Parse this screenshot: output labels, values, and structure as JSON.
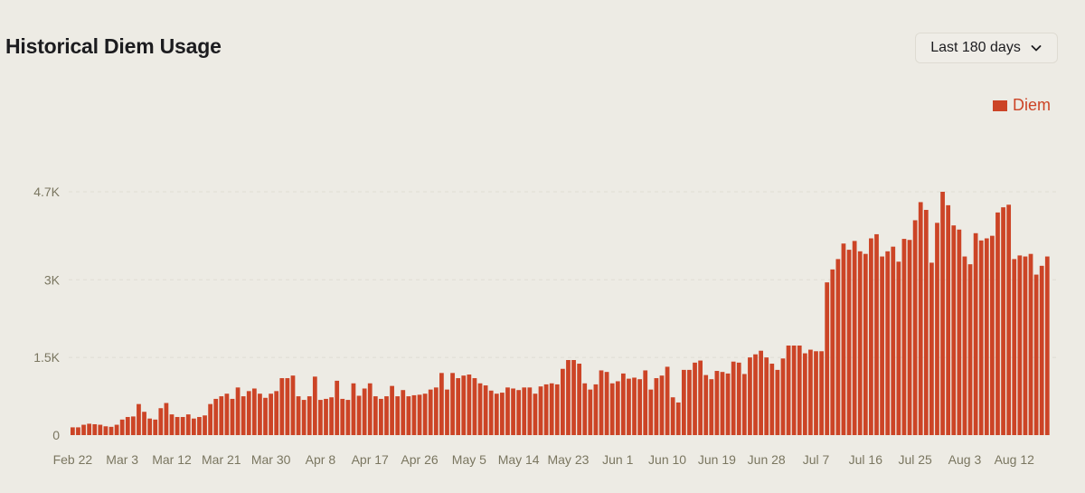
{
  "header": {
    "title": "Historical Diem Usage"
  },
  "range_select": {
    "label": "Last 180 days",
    "icon": "chevron-down-icon"
  },
  "colors": {
    "bar": "#cc4426",
    "background": "#edebe4",
    "tick_text": "#7a7660",
    "gridline": "#e0ddd3"
  },
  "chart_data": {
    "type": "bar",
    "title": "Historical Diem Usage",
    "xlabel": "",
    "ylabel": "",
    "ylim": [
      0,
      4700
    ],
    "y_ticks": [
      0,
      1500,
      3000,
      4700
    ],
    "y_tick_labels": [
      "0",
      "1.5K",
      "3K",
      "4.7K"
    ],
    "grid": true,
    "legend": "top-right",
    "start_date": "Feb 22",
    "x_tick_labels": [
      {
        "label": "Feb 22",
        "index": 0
      },
      {
        "label": "Mar 3",
        "index": 9
      },
      {
        "label": "Mar 12",
        "index": 18
      },
      {
        "label": "Mar 21",
        "index": 27
      },
      {
        "label": "Mar 30",
        "index": 36
      },
      {
        "label": "Apr 8",
        "index": 45
      },
      {
        "label": "Apr 17",
        "index": 54
      },
      {
        "label": "Apr 26",
        "index": 63
      },
      {
        "label": "May 5",
        "index": 72
      },
      {
        "label": "May 14",
        "index": 81
      },
      {
        "label": "May 23",
        "index": 90
      },
      {
        "label": "Jun 1",
        "index": 99
      },
      {
        "label": "Jun 10",
        "index": 108
      },
      {
        "label": "Jun 19",
        "index": 117
      },
      {
        "label": "Jun 28",
        "index": 126
      },
      {
        "label": "Jul 7",
        "index": 135
      },
      {
        "label": "Jul 16",
        "index": 144
      },
      {
        "label": "Jul 25",
        "index": 153
      },
      {
        "label": "Aug 3",
        "index": 162
      },
      {
        "label": "Aug 12",
        "index": 171
      }
    ],
    "series": [
      {
        "name": "Diem",
        "values": [
          150,
          150,
          200,
          220,
          210,
          200,
          170,
          160,
          200,
          300,
          350,
          360,
          600,
          450,
          320,
          300,
          520,
          620,
          400,
          350,
          350,
          400,
          320,
          350,
          380,
          600,
          700,
          750,
          800,
          700,
          920,
          750,
          850,
          900,
          800,
          720,
          800,
          850,
          1100,
          1100,
          1150,
          750,
          680,
          750,
          1130,
          680,
          700,
          730,
          1050,
          700,
          680,
          1000,
          760,
          900,
          1000,
          750,
          700,
          750,
          950,
          750,
          870,
          750,
          770,
          780,
          800,
          880,
          920,
          1200,
          880,
          1200,
          1100,
          1150,
          1170,
          1100,
          1000,
          960,
          860,
          800,
          820,
          920,
          900,
          870,
          920,
          920,
          800,
          940,
          980,
          1000,
          980,
          1280,
          1450,
          1450,
          1380,
          1000,
          880,
          980,
          1250,
          1220,
          1000,
          1040,
          1190,
          1090,
          1110,
          1080,
          1250,
          880,
          1100,
          1150,
          1320,
          730,
          630,
          1260,
          1260,
          1400,
          1440,
          1160,
          1080,
          1240,
          1220,
          1190,
          1420,
          1400,
          1180,
          1500,
          1560,
          1630,
          1500,
          1380,
          1260,
          1480,
          1730,
          1730,
          1730,
          1580,
          1650,
          1620,
          1620,
          2950,
          3200,
          3400,
          3700,
          3580,
          3750,
          3550,
          3500,
          3800,
          3880,
          3450,
          3550,
          3640,
          3350,
          3790,
          3770,
          4150,
          4500,
          4350,
          3330,
          4100,
          4700,
          4440,
          4050,
          3970,
          3450,
          3300,
          3900,
          3760,
          3800,
          3850,
          4300,
          4400,
          4450,
          3400,
          3470,
          3450,
          3500,
          3100,
          3270,
          3450
        ]
      }
    ]
  }
}
